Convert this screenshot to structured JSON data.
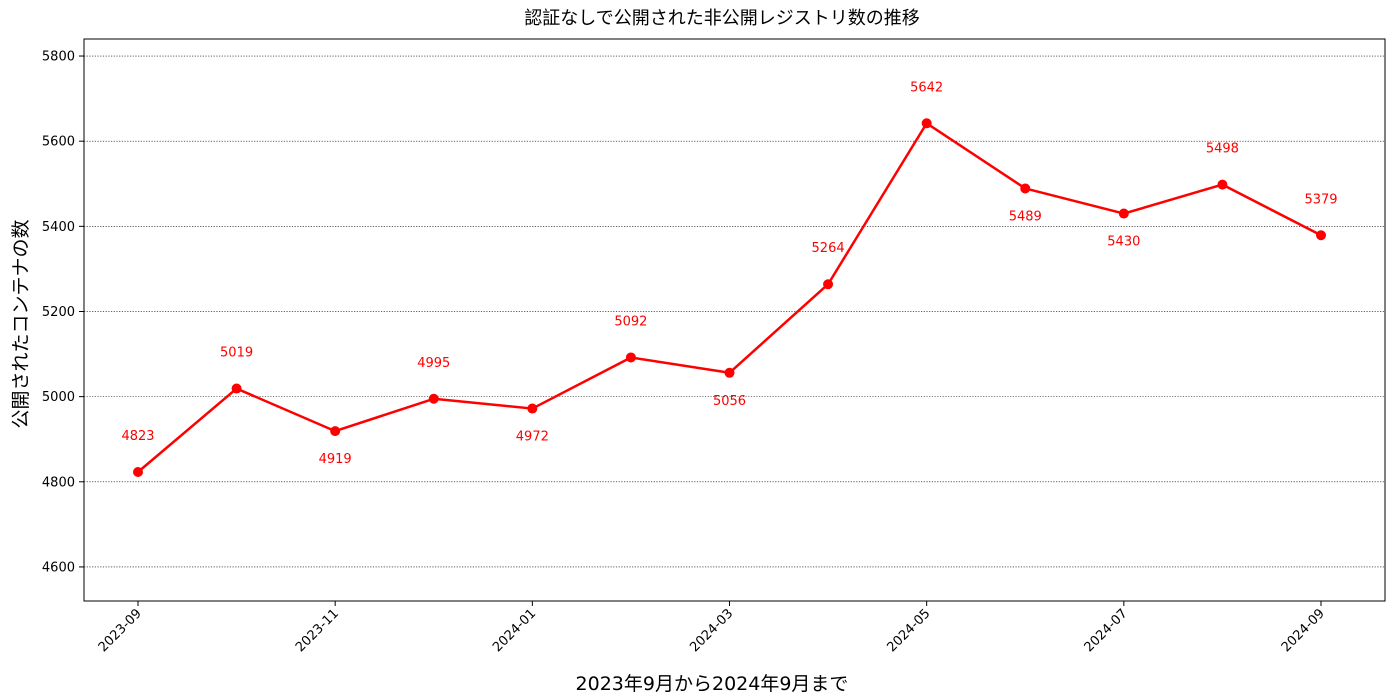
{
  "chart_data": {
    "type": "line",
    "title": "認証なしで公開された非公開レジストリ数の推移",
    "xlabel": "2023年9月から2024年9月まで",
    "ylabel": "公開されたコンテナの数",
    "x": [
      "2023-09",
      "2023-10",
      "2023-11",
      "2023-12",
      "2024-01",
      "2024-02",
      "2024-03",
      "2024-04",
      "2024-05",
      "2024-06",
      "2024-07",
      "2024-08",
      "2024-09"
    ],
    "x_tick_labels": [
      "2023-09",
      "2023-11",
      "2024-01",
      "2024-03",
      "2024-05",
      "2024-07",
      "2024-09"
    ],
    "series": [
      {
        "values": [
          4823,
          5019,
          4919,
          4995,
          4972,
          5092,
          5056,
          5264,
          5642,
          5489,
          5430,
          5498,
          5379
        ],
        "data_labels": [
          "4823",
          "5019",
          "4919",
          "4995",
          "4972",
          "5092",
          "5056",
          "5264",
          "5642",
          "5489",
          "5430",
          "5498",
          "5379"
        ],
        "color": "#ff0000"
      }
    ],
    "ylim": [
      4520,
      5840
    ],
    "y_ticks": [
      "4600",
      "4800",
      "5000",
      "5200",
      "5400",
      "5600",
      "5800"
    ],
    "grid": "horizontal dotted",
    "legend": "none"
  }
}
